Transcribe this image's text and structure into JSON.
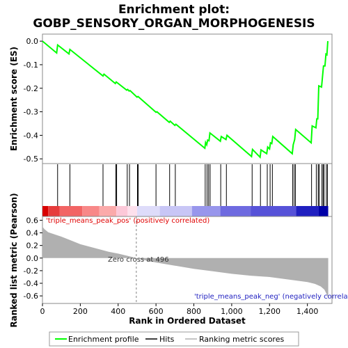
{
  "title_line1": "Enrichment plot:",
  "title_line2": "GOBP_SENSORY_ORGAN_MORPHOGENESIS",
  "legend": {
    "profile": "Enrichment profile",
    "hits": "Hits",
    "metric": "Ranking metric scores"
  },
  "colors": {
    "profile": "#00ff00",
    "hits": "#000000",
    "metric_fill": "#b0b0b0",
    "zero_line": "#808080"
  },
  "chart_data": [
    {
      "type": "line",
      "name": "es-panel",
      "ylabel": "Enrichment score (ES)",
      "xlim": [
        0,
        1530
      ],
      "ylim": [
        -0.52,
        0.03
      ],
      "yticks": [
        0.0,
        -0.1,
        -0.2,
        -0.3,
        -0.4,
        -0.5
      ],
      "ytick_labels": [
        "0.0",
        "-0.1",
        "-0.2",
        "-0.3",
        "-0.4",
        "-0.5"
      ],
      "grid": false,
      "points": [
        [
          0,
          0.0
        ],
        [
          75,
          -0.05
        ],
        [
          80,
          -0.016
        ],
        [
          140,
          -0.054
        ],
        [
          145,
          -0.035
        ],
        [
          320,
          -0.148
        ],
        [
          325,
          -0.14
        ],
        [
          385,
          -0.18
        ],
        [
          390,
          -0.173
        ],
        [
          445,
          -0.208
        ],
        [
          450,
          -0.205
        ],
        [
          458,
          -0.212
        ],
        [
          463,
          -0.21
        ],
        [
          500,
          -0.238
        ],
        [
          505,
          -0.235
        ],
        [
          600,
          -0.302
        ],
        [
          605,
          -0.3
        ],
        [
          670,
          -0.345
        ],
        [
          675,
          -0.34
        ],
        [
          700,
          -0.358
        ],
        [
          705,
          -0.353
        ],
        [
          858,
          -0.455
        ],
        [
          862,
          -0.43
        ],
        [
          868,
          -0.44
        ],
        [
          873,
          -0.42
        ],
        [
          880,
          -0.423
        ],
        [
          885,
          -0.39
        ],
        [
          940,
          -0.425
        ],
        [
          945,
          -0.405
        ],
        [
          970,
          -0.418
        ],
        [
          975,
          -0.4
        ],
        [
          1105,
          -0.49
        ],
        [
          1110,
          -0.46
        ],
        [
          1150,
          -0.493
        ],
        [
          1155,
          -0.462
        ],
        [
          1185,
          -0.478
        ],
        [
          1190,
          -0.45
        ],
        [
          1200,
          -0.458
        ],
        [
          1205,
          -0.432
        ],
        [
          1212,
          -0.435
        ],
        [
          1217,
          -0.405
        ],
        [
          1320,
          -0.478
        ],
        [
          1325,
          -0.44
        ],
        [
          1333,
          -0.418
        ],
        [
          1338,
          -0.375
        ],
        [
          1420,
          -0.432
        ],
        [
          1425,
          -0.36
        ],
        [
          1445,
          -0.368
        ],
        [
          1450,
          -0.33
        ],
        [
          1455,
          -0.33
        ],
        [
          1460,
          -0.19
        ],
        [
          1475,
          -0.195
        ],
        [
          1480,
          -0.15
        ],
        [
          1485,
          -0.105
        ],
        [
          1493,
          -0.105
        ],
        [
          1498,
          -0.055
        ],
        [
          1503,
          -0.058
        ],
        [
          1508,
          0.0
        ]
      ]
    },
    {
      "type": "heatmap",
      "name": "hits-panel",
      "xlim": [
        0,
        1530
      ],
      "hits": [
        80,
        145,
        320,
        388,
        392,
        448,
        460,
        502,
        506,
        600,
        672,
        702,
        860,
        870,
        878,
        886,
        942,
        972,
        1108,
        1152,
        1188,
        1203,
        1215,
        1322,
        1330,
        1337,
        1422,
        1447,
        1457,
        1462,
        1477,
        1483,
        1488,
        1500,
        1506
      ],
      "color_blocks": [
        {
          "x0": 0,
          "x1": 30,
          "color": "#d80000"
        },
        {
          "x0": 30,
          "x1": 90,
          "color": "#e63c3c"
        },
        {
          "x0": 90,
          "x1": 210,
          "color": "#f26464"
        },
        {
          "x0": 210,
          "x1": 300,
          "color": "#f88888"
        },
        {
          "x0": 300,
          "x1": 390,
          "color": "#fbaaaa"
        },
        {
          "x0": 390,
          "x1": 450,
          "color": "#fcc8d8"
        },
        {
          "x0": 450,
          "x1": 500,
          "color": "#fde0ec"
        },
        {
          "x0": 500,
          "x1": 620,
          "color": "#dedcfa"
        },
        {
          "x0": 620,
          "x1": 790,
          "color": "#c8c6f6"
        },
        {
          "x0": 790,
          "x1": 940,
          "color": "#9896ec"
        },
        {
          "x0": 940,
          "x1": 1100,
          "color": "#6e6ae0"
        },
        {
          "x0": 1100,
          "x1": 1340,
          "color": "#5652d8"
        },
        {
          "x0": 1340,
          "x1": 1460,
          "color": "#2020c0"
        },
        {
          "x0": 1460,
          "x1": 1510,
          "color": "#0000a8"
        }
      ]
    },
    {
      "type": "area",
      "name": "metric-panel",
      "ylabel": "Ranked list metric (Pearson)",
      "xlabel": "Rank in Ordered Dataset",
      "xlim": [
        0,
        1530
      ],
      "ylim": [
        -0.72,
        0.66
      ],
      "xticks": [
        0,
        200,
        400,
        600,
        800,
        1000,
        1200,
        1400
      ],
      "xtick_labels": [
        "0",
        "200",
        "400",
        "600",
        "800",
        "1,000",
        "1,200",
        "1,400"
      ],
      "yticks": [
        0.6,
        0.4,
        0.2,
        0.0,
        -0.2,
        -0.4,
        -0.6
      ],
      "ytick_labels": [
        "0.6",
        "0.4",
        "0.2",
        "0.0",
        "-0.2",
        "-0.4",
        "-0.6"
      ],
      "grid": false,
      "points": [
        [
          0,
          0.5
        ],
        [
          10,
          0.46
        ],
        [
          30,
          0.41
        ],
        [
          60,
          0.38
        ],
        [
          100,
          0.34
        ],
        [
          150,
          0.28
        ],
        [
          200,
          0.22
        ],
        [
          250,
          0.18
        ],
        [
          300,
          0.14
        ],
        [
          350,
          0.1
        ],
        [
          400,
          0.07
        ],
        [
          450,
          0.035
        ],
        [
          496,
          0.0
        ],
        [
          550,
          -0.04
        ],
        [
          600,
          -0.07
        ],
        [
          700,
          -0.12
        ],
        [
          800,
          -0.17
        ],
        [
          900,
          -0.21
        ],
        [
          1000,
          -0.25
        ],
        [
          1100,
          -0.28
        ],
        [
          1200,
          -0.3
        ],
        [
          1300,
          -0.34
        ],
        [
          1400,
          -0.38
        ],
        [
          1440,
          -0.41
        ],
        [
          1470,
          -0.45
        ],
        [
          1490,
          -0.5
        ],
        [
          1500,
          -0.56
        ],
        [
          1508,
          -0.62
        ],
        [
          1510,
          -0.66
        ]
      ],
      "annotations": {
        "pos_label": "'triple_means_peak_pos' (positively correlated)",
        "neg_label": "'triple_means_peak_neg' (negatively correlated)",
        "zero_cross": "Zero cross at 496",
        "zero_cross_x": 496
      }
    }
  ]
}
